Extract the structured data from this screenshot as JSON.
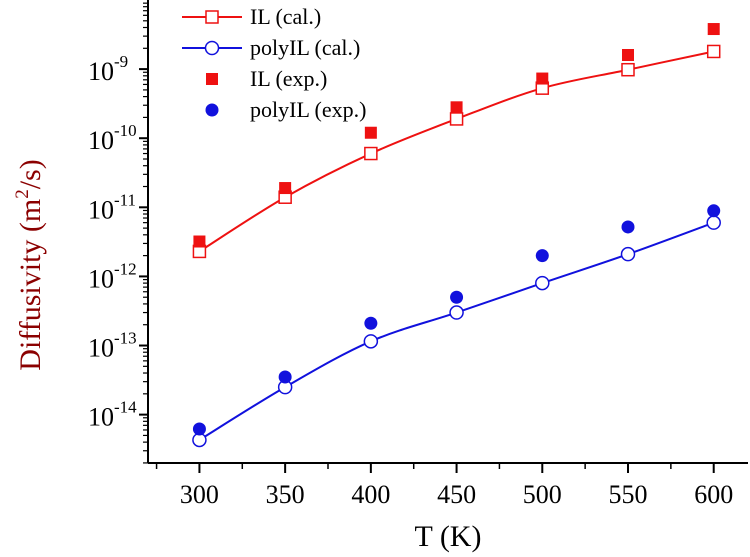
{
  "colors": {
    "il": "#ee1111",
    "polyil": "#1111dd",
    "axis": "#000000",
    "ylabel": "#8b0000"
  },
  "chart_data": {
    "type": "scatter",
    "title": "",
    "xlabel": "T (K)",
    "ylabel_main": "Diffusivity (m",
    "ylabel_sup": "2",
    "ylabel_tail": "/s)",
    "xlim": [
      270,
      620
    ],
    "ylim_log10": [
      -14.7,
      -8.0
    ],
    "x_ticks": [
      300,
      350,
      400,
      450,
      500,
      550,
      600
    ],
    "x_tick_labels": [
      "300",
      "350",
      "400",
      "450",
      "500",
      "550",
      "600"
    ],
    "y_ticks": [
      {
        "base": "10",
        "exp": "-14",
        "value": -14
      },
      {
        "base": "10",
        "exp": "-13",
        "value": -13
      },
      {
        "base": "10",
        "exp": "-12",
        "value": -12
      },
      {
        "base": "10",
        "exp": "-11",
        "value": -11
      },
      {
        "base": "10",
        "exp": "-10",
        "value": -10
      },
      {
        "base": "10",
        "exp": "-9",
        "value": -9
      }
    ],
    "x": [
      300,
      350,
      400,
      450,
      500,
      550,
      600
    ],
    "series": [
      {
        "name": "IL (cal.)",
        "style": "line-open-square",
        "color": "il",
        "values": [
          2.3e-12,
          1.4e-11,
          6e-11,
          1.9e-10,
          5.3e-10,
          9.8e-10,
          1.8e-09
        ]
      },
      {
        "name": "polyIL (cal.)",
        "style": "line-open-circle",
        "color": "polyil",
        "values": [
          4.3e-15,
          2.5e-14,
          1.15e-13,
          3e-13,
          8e-13,
          2.1e-12,
          6e-12
        ]
      },
      {
        "name": "IL (exp.)",
        "style": "filled-square",
        "color": "il",
        "values": [
          3.2e-12,
          1.9e-11,
          1.2e-10,
          2.8e-10,
          7.3e-10,
          1.6e-09,
          3.8e-09
        ]
      },
      {
        "name": "polyIL (exp.)",
        "style": "filled-circle",
        "color": "polyil",
        "values": [
          6.2e-15,
          3.5e-14,
          2.1e-13,
          5e-13,
          2e-12,
          5.2e-12,
          8.9e-12
        ]
      }
    ],
    "legend_position": "top-left"
  }
}
